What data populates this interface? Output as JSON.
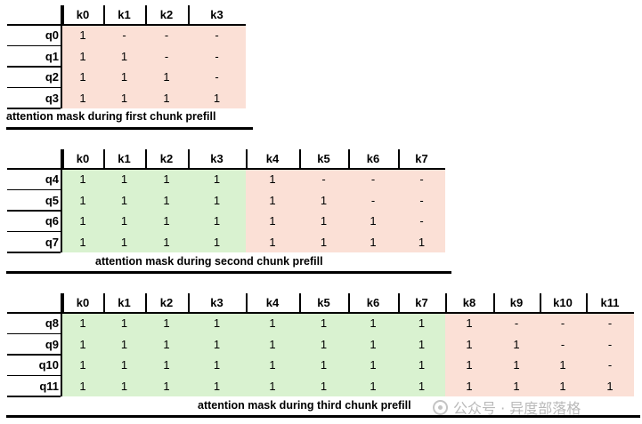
{
  "colors": {
    "pink": "#fbe0d6",
    "green": "#d9f2d0",
    "line": "#000000"
  },
  "tables": [
    {
      "cols": [
        "k0",
        "k1",
        "k2",
        "k3"
      ],
      "rows": [
        {
          "label": "q0",
          "vals": [
            "1",
            "-",
            "-",
            "-"
          ]
        },
        {
          "label": "q1",
          "vals": [
            "1",
            "1",
            "-",
            "-"
          ]
        },
        {
          "label": "q2",
          "vals": [
            "1",
            "1",
            "1",
            "-"
          ]
        },
        {
          "label": "q3",
          "vals": [
            "1",
            "1",
            "1",
            "1"
          ]
        }
      ],
      "green_cols": 0,
      "caption": "attention mask during first chunk prefill"
    },
    {
      "cols": [
        "k0",
        "k1",
        "k2",
        "k3",
        "k4",
        "k5",
        "k6",
        "k7"
      ],
      "rows": [
        {
          "label": "q4",
          "vals": [
            "1",
            "1",
            "1",
            "1",
            "1",
            "-",
            "-",
            "-"
          ]
        },
        {
          "label": "q5",
          "vals": [
            "1",
            "1",
            "1",
            "1",
            "1",
            "1",
            "-",
            "-"
          ]
        },
        {
          "label": "q6",
          "vals": [
            "1",
            "1",
            "1",
            "1",
            "1",
            "1",
            "1",
            "-"
          ]
        },
        {
          "label": "q7",
          "vals": [
            "1",
            "1",
            "1",
            "1",
            "1",
            "1",
            "1",
            "1"
          ]
        }
      ],
      "green_cols": 4,
      "caption": "attention mask during second chunk prefill"
    },
    {
      "cols": [
        "k0",
        "k1",
        "k2",
        "k3",
        "k4",
        "k5",
        "k6",
        "k7",
        "k8",
        "k9",
        "k10",
        "k11"
      ],
      "rows": [
        {
          "label": "q8",
          "vals": [
            "1",
            "1",
            "1",
            "1",
            "1",
            "1",
            "1",
            "1",
            "1",
            "-",
            "-",
            "-"
          ]
        },
        {
          "label": "q9",
          "vals": [
            "1",
            "1",
            "1",
            "1",
            "1",
            "1",
            "1",
            "1",
            "1",
            "1",
            "-",
            "-"
          ]
        },
        {
          "label": "q10",
          "vals": [
            "1",
            "1",
            "1",
            "1",
            "1",
            "1",
            "1",
            "1",
            "1",
            "1",
            "1",
            "-"
          ]
        },
        {
          "label": "q11",
          "vals": [
            "1",
            "1",
            "1",
            "1",
            "1",
            "1",
            "1",
            "1",
            "1",
            "1",
            "1",
            "1"
          ]
        }
      ],
      "green_cols": 8,
      "caption": "attention mask during third chunk prefill"
    }
  ],
  "watermark": "公众号 · 异度部落格"
}
